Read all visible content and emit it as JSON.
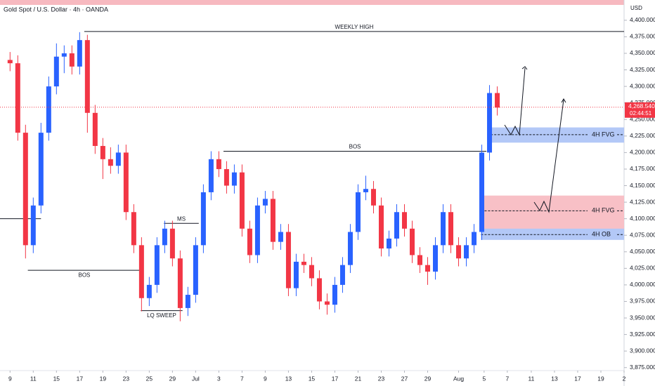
{
  "chart_data": {
    "type": "candlestick",
    "title": "Gold Spot / U.S. Dollar · 4h · OANDA",
    "currency": "USD",
    "up_color": "#2962ff",
    "down_color": "#f23645",
    "xlim": [
      -1.3,
      79.4
    ],
    "ylim": [
      3862,
      4420
    ],
    "xticks": [
      {
        "value": 0,
        "label": "9"
      },
      {
        "value": 3,
        "label": "11"
      },
      {
        "value": 6,
        "label": "15"
      },
      {
        "value": 9,
        "label": "17"
      },
      {
        "value": 12,
        "label": "19"
      },
      {
        "value": 15,
        "label": "23"
      },
      {
        "value": 18,
        "label": "25"
      },
      {
        "value": 21,
        "label": "29"
      },
      {
        "value": 24,
        "label": "Jul"
      },
      {
        "value": 27,
        "label": "3"
      },
      {
        "value": 30,
        "label": "7"
      },
      {
        "value": 33,
        "label": "9"
      },
      {
        "value": 36,
        "label": "13"
      },
      {
        "value": 39,
        "label": "15"
      },
      {
        "value": 42,
        "label": "17"
      },
      {
        "value": 45,
        "label": "21"
      },
      {
        "value": 48,
        "label": "23"
      },
      {
        "value": 51,
        "label": "27"
      },
      {
        "value": 54,
        "label": "29"
      },
      {
        "value": 58,
        "label": "Aug"
      },
      {
        "value": 61.3,
        "label": "5"
      },
      {
        "value": 64.3,
        "label": "7"
      },
      {
        "value": 67.4,
        "label": "11"
      },
      {
        "value": 70.4,
        "label": "13"
      },
      {
        "value": 73.4,
        "label": "17"
      },
      {
        "value": 76.4,
        "label": "19"
      },
      {
        "value": 79.4,
        "label": "2"
      }
    ],
    "yticks": [
      {
        "value": 3875,
        "label": "3,875.000"
      },
      {
        "value": 3900,
        "label": "3,900.000"
      },
      {
        "value": 3925,
        "label": "3,925.000"
      },
      {
        "value": 3950,
        "label": "3,950.000"
      },
      {
        "value": 3975,
        "label": "3,975.000"
      },
      {
        "value": 4000,
        "label": "4,000.000"
      },
      {
        "value": 4025,
        "label": "4,025.000"
      },
      {
        "value": 4050,
        "label": "4,050.000"
      },
      {
        "value": 4075,
        "label": "4,075.000"
      },
      {
        "value": 4100,
        "label": "4,100.000"
      },
      {
        "value": 4125,
        "label": "4,125.000"
      },
      {
        "value": 4150,
        "label": "4,150.000"
      },
      {
        "value": 4175,
        "label": "4,175.000"
      },
      {
        "value": 4200,
        "label": "4,200.000"
      },
      {
        "value": 4225,
        "label": "4,225.000"
      },
      {
        "value": 4250,
        "label": "4,250.000"
      },
      {
        "value": 4275,
        "label": "4,275.000"
      },
      {
        "value": 4300,
        "label": "4,300.000"
      },
      {
        "value": 4325,
        "label": "4,325.000"
      },
      {
        "value": 4350,
        "label": "4,350.000"
      },
      {
        "value": 4375,
        "label": "4,375.000"
      },
      {
        "value": 4400,
        "label": "4,400.000"
      }
    ],
    "open": [
      4340,
      4335,
      4230,
      4060,
      4120,
      4230,
      4300,
      4345,
      4350,
      4330,
      4370,
      4260,
      4210,
      4190,
      4180,
      4200,
      4110,
      4060,
      3980,
      4000,
      4060,
      4085,
      4040,
      3965,
      3985,
      4060,
      4140,
      4190,
      4175,
      4150,
      4170,
      4085,
      4045,
      4120,
      4130,
      4065,
      4080,
      3995,
      4035,
      4030,
      4010,
      3975,
      3970,
      4000,
      4030,
      4080,
      4140,
      4145,
      4120,
      4055,
      4070,
      4110,
      4085,
      4045,
      4030,
      4020,
      4060,
      4110,
      4060,
      4040,
      4060,
      4080,
      4200,
      4290
    ],
    "high": [
      4352,
      4347,
      4242,
      4132,
      4245,
      4315,
      4365,
      4362,
      4362,
      4382,
      4378,
      4272,
      4222,
      4208,
      4212,
      4212,
      4122,
      4072,
      4012,
      4072,
      4097,
      4097,
      4052,
      3997,
      4072,
      4152,
      4202,
      4202,
      4187,
      4182,
      4182,
      4097,
      4132,
      4142,
      4142,
      4092,
      4092,
      4047,
      4047,
      4042,
      4022,
      3987,
      4012,
      4042,
      4092,
      4152,
      4165,
      4157,
      4132,
      4082,
      4122,
      4122,
      4097,
      4057,
      4042,
      4072,
      4122,
      4122,
      4072,
      4072,
      4092,
      4212,
      4302,
      4300
    ],
    "low": [
      4323,
      4218,
      4040,
      4048,
      4108,
      4218,
      4288,
      4320,
      4318,
      4318,
      4230,
      4198,
      4160,
      4168,
      4168,
      4098,
      4048,
      3960,
      3968,
      3988,
      4048,
      4028,
      3945,
      3953,
      3973,
      4048,
      4128,
      4163,
      4138,
      4138,
      4073,
      4033,
      4033,
      4108,
      4053,
      4053,
      3983,
      3983,
      4018,
      3998,
      3963,
      3955,
      3958,
      3988,
      4018,
      4068,
      4128,
      4108,
      4043,
      4043,
      4058,
      4073,
      4033,
      4018,
      4000,
      4008,
      4048,
      4048,
      4028,
      4028,
      4048,
      4068,
      4188,
      4256
    ],
    "close": [
      4335,
      4230,
      4060,
      4120,
      4230,
      4300,
      4345,
      4350,
      4330,
      4370,
      4260,
      4210,
      4190,
      4180,
      4200,
      4110,
      4060,
      3980,
      4000,
      4060,
      4085,
      4040,
      3965,
      3985,
      4060,
      4140,
      4190,
      4175,
      4150,
      4170,
      4085,
      4045,
      4120,
      4130,
      4065,
      4080,
      3995,
      4035,
      4030,
      4010,
      3975,
      3970,
      4000,
      4030,
      4080,
      4140,
      4145,
      4120,
      4055,
      4070,
      4110,
      4085,
      4045,
      4030,
      4020,
      4060,
      4110,
      4060,
      4040,
      4060,
      4080,
      4200,
      4290,
      4268
    ],
    "last_price": {
      "value": 4268.54,
      "label": "4,268.540"
    },
    "countdown": "02:44:51",
    "lines": [
      {
        "label": "WEEKLY HIGH",
        "y": 4383,
        "x": [
          9.6,
          79.4
        ],
        "label_side": "above"
      },
      {
        "label": "BOS",
        "y": 4202,
        "x": [
          27.6,
          61.6
        ],
        "label_side": "above"
      },
      {
        "label": "BOS",
        "y": 4022,
        "x": [
          2.3,
          16.9
        ],
        "label_side": "below"
      },
      {
        "label": "MS",
        "y": 4093,
        "x": [
          19.9,
          24.4
        ],
        "label_side": "above"
      },
      {
        "label": "LQ SWEEP",
        "y": 3961,
        "x": [
          16.9,
          22.3
        ],
        "label_side": "below"
      },
      {
        "y": 4100,
        "x": [
          -1.3,
          4.0
        ]
      }
    ],
    "zones": [
      {
        "label": "4H FVG",
        "top": 4238,
        "bottom": 4215,
        "level": 4227,
        "x": [
          61.7,
          79.4
        ],
        "color": "#b3c8f7"
      },
      {
        "label": "4H FVG",
        "top": 4135,
        "bottom": 4080,
        "level": 4112,
        "x": [
          60.9,
          79.4
        ],
        "color": "#f8c0c6"
      },
      {
        "label": "4H OB",
        "top": 4085,
        "bottom": 4068,
        "level": 4076,
        "x": [
          60.9,
          79.4
        ],
        "color": "#b3c8f7"
      }
    ]
  }
}
